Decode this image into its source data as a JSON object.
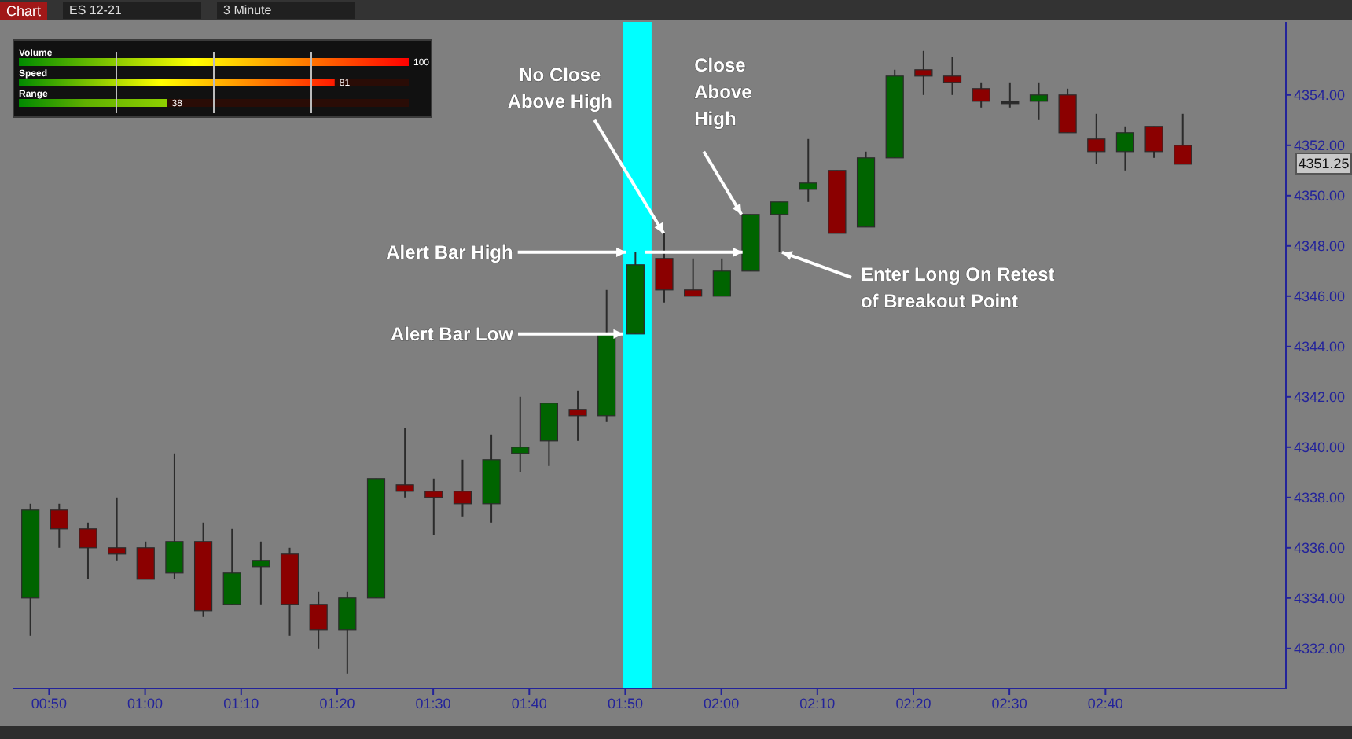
{
  "chart_data": [
    {
      "type": "candlestick",
      "title": "ES 12-21",
      "subtitle": "3 Minute",
      "x": [
        0.8,
        0.85,
        0.9,
        0.95,
        1,
        1.05,
        1.1,
        1.15,
        1.2,
        1.25,
        1.3,
        1.35,
        1.4,
        1.45,
        1.5,
        1.55,
        1.6,
        1.65,
        1.7,
        1.75,
        1.8,
        1.85,
        1.9,
        1.95,
        2,
        2.05,
        2.1,
        2.15,
        2.2,
        2.25,
        2.3,
        2.35,
        2.4,
        2.45,
        2.5,
        2.55,
        2.6,
        2.65,
        2.7,
        2.75,
        2.8
      ],
      "ohlc": [
        [
          4334,
          4337.75,
          4332.5,
          4337.5
        ],
        [
          4337.5,
          4337.75,
          4336,
          4336.75
        ],
        [
          4336.75,
          4337,
          4334.75,
          4336
        ],
        [
          4336,
          4338,
          4335.5,
          4335.75
        ],
        [
          4336,
          4336.25,
          4334.75,
          4334.75
        ],
        [
          4335,
          4339.75,
          4334.75,
          4336.25
        ],
        [
          4336.25,
          4337,
          4333.25,
          4333.5
        ],
        [
          4333.75,
          4336.75,
          4333.75,
          4335
        ],
        [
          4335.25,
          4336.25,
          4333.75,
          4335.5
        ],
        [
          4335.75,
          4336,
          4332.5,
          4333.75
        ],
        [
          4333.75,
          4334.25,
          4332,
          4332.75
        ],
        [
          4332.75,
          4334.25,
          4331,
          4334
        ],
        [
          4334,
          4338.75,
          4334,
          4338.75
        ],
        [
          4338.5,
          4340.75,
          4338,
          4338.25
        ],
        [
          4338.25,
          4338.75,
          4336.5,
          4338
        ],
        [
          4338.25,
          4339.5,
          4337.25,
          4337.75
        ],
        [
          4337.75,
          4340.5,
          4337,
          4339.5
        ],
        [
          4339.75,
          4342,
          4339,
          4340
        ],
        [
          4340.25,
          4341.75,
          4339.25,
          4341.75
        ],
        [
          4341.5,
          4342.25,
          4340.25,
          4341.25
        ],
        [
          4341.25,
          4346.25,
          4341,
          4344.5
        ],
        [
          4344.5,
          4347.75,
          4344.5,
          4347.25
        ],
        [
          4347.5,
          4348.5,
          4345.75,
          4346.25
        ],
        [
          4346.25,
          4347.5,
          4346,
          4346
        ],
        [
          4346,
          4347.5,
          4346,
          4347
        ],
        [
          4347,
          4349.25,
          4347,
          4349.25
        ],
        [
          4349.25,
          4349.75,
          4347.75,
          4349.75
        ],
        [
          4350.25,
          4352.25,
          4349.75,
          4350.5
        ],
        [
          4351,
          4351,
          4348.5,
          4348.5
        ],
        [
          4348.75,
          4351.75,
          4348.75,
          4351.5
        ],
        [
          4351.5,
          4355,
          4351.5,
          4354.75
        ],
        [
          4355,
          4355.75,
          4354,
          4354.75
        ],
        [
          4354.75,
          4355.5,
          4354,
          4354.5
        ],
        [
          4354.25,
          4354.5,
          4353.5,
          4353.75
        ],
        [
          4353.75,
          4354.5,
          4353.5,
          4353.75
        ],
        [
          4353.75,
          4354.5,
          4353,
          4354
        ],
        [
          4354,
          4354.25,
          4352.5,
          4352.5
        ],
        [
          4352.25,
          4353.25,
          4351.25,
          4351.75
        ],
        [
          4351.75,
          4352.75,
          4351,
          4352.5
        ],
        [
          4352.75,
          4352.75,
          4351.5,
          4351.75
        ],
        [
          4352,
          4353.25,
          4351.25,
          4351.25
        ]
      ],
      "colors": [
        "#006400",
        "#8b0000",
        "#8b0000",
        "#8b0000",
        "#8b0000",
        "#006400",
        "#8b0000",
        "#006400",
        "#006400",
        "#8b0000",
        "#8b0000",
        "#006400",
        "#006400",
        "#8b0000",
        "#8b0000",
        "#8b0000",
        "#006400",
        "#006400",
        "#006400",
        "#8b0000",
        "#006400",
        "#006400",
        "#8b0000",
        "#8b0000",
        "#006400",
        "#006400",
        "#006400",
        "#006400",
        "#8b0000",
        "#006400",
        "#006400",
        "#8b0000",
        "#8b0000",
        "#8b0000",
        "#2a2a2a",
        "#006400",
        "#8b0000",
        "#8b0000",
        "#006400",
        "#8b0000",
        "#8b0000"
      ],
      "xlim": [
        0.77,
        2.98
      ],
      "xticks": [
        {
          "value": 0.8333,
          "label": "00:50"
        },
        {
          "value": 1,
          "label": "01:00"
        },
        {
          "value": 1.1667,
          "label": "01:10"
        },
        {
          "value": 1.3333,
          "label": "01:20"
        },
        {
          "value": 1.5,
          "label": "01:30"
        },
        {
          "value": 1.6667,
          "label": "01:40"
        },
        {
          "value": 1.8333,
          "label": "01:50"
        },
        {
          "value": 2,
          "label": "02:00"
        },
        {
          "value": 2.1667,
          "label": "02:10"
        },
        {
          "value": 2.3333,
          "label": "02:20"
        },
        {
          "value": 2.5,
          "label": "02:30"
        },
        {
          "value": 2.6667,
          "label": "02:40"
        }
      ],
      "ylim": [
        4330.4,
        4356.9
      ],
      "yticks": [
        {
          "value": 4332,
          "label": "4332.00"
        },
        {
          "value": 4334,
          "label": "4334.00"
        },
        {
          "value": 4336,
          "label": "4336.00"
        },
        {
          "value": 4338,
          "label": "4338.00"
        },
        {
          "value": 4340,
          "label": "4340.00"
        },
        {
          "value": 4342,
          "label": "4342.00"
        },
        {
          "value": 4344,
          "label": "4344.00"
        },
        {
          "value": 4346,
          "label": "4346.00"
        },
        {
          "value": 4348,
          "label": "4348.00"
        },
        {
          "value": 4350,
          "label": "4350.00"
        },
        {
          "value": 4352,
          "label": "4352.00"
        },
        {
          "value": 4354,
          "label": "4354.00"
        }
      ],
      "bands": [
        {
          "axis": "x",
          "from": 1.83,
          "to": 1.879,
          "color": "#00ffff"
        }
      ],
      "annotations": [
        {
          "text": "No Close Above High",
          "x": 1.9,
          "y": 4348.5
        },
        {
          "text": "Close Above High",
          "x": 2.035,
          "y": 4349.25
        },
        {
          "text": "Alert Bar High",
          "x": 1.835,
          "y": 4347.75
        },
        {
          "text": "Alert Bar Low",
          "x": 1.83,
          "y": 4344.5
        },
        {
          "text": "Enter Long On Retest of Breakout Point",
          "x": 2.1,
          "y": 4347.75
        },
        "4351.25",
        "Chart"
      ]
    },
    {
      "type": "bar",
      "orientation": "horizontal",
      "categories": [
        "Volume",
        "Speed",
        "Range"
      ],
      "values": [
        100,
        81,
        38
      ],
      "colors": [
        "#ff0000",
        "#ff1a00",
        "#8fd000"
      ],
      "xlim": [
        0,
        100
      ],
      "xticks": [
        25,
        50,
        75
      ],
      "grid": "x",
      "tick_labels": false,
      "data_labels": true
    }
  ]
}
